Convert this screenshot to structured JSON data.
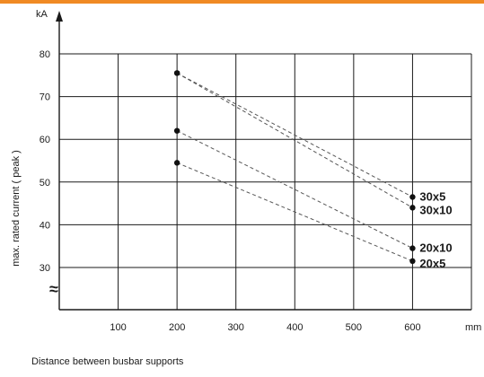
{
  "colors": {
    "accent_bar": "#f08a24",
    "grid": "#1a1a1a",
    "series_line": "#555555",
    "point": "#111111"
  },
  "chart_data": {
    "type": "line",
    "title": "",
    "xlabel": "Distance between busbar supports",
    "ylabel": "max. rated current ( peak )",
    "x_unit": "mm",
    "y_unit": "kA",
    "xlim": [
      0,
      700
    ],
    "ylim": [
      30,
      80
    ],
    "x_ticks": [
      100,
      200,
      300,
      400,
      500,
      600
    ],
    "x_tick_labels": [
      "100",
      "200",
      "300",
      "400",
      "500",
      "600"
    ],
    "y_ticks": [
      30,
      40,
      50,
      60,
      70,
      80
    ],
    "y_tick_labels": [
      "30",
      "40",
      "50",
      "60",
      "70",
      "80"
    ],
    "axis_break_symbol": "≈",
    "grid": true,
    "legend": "none",
    "series": [
      {
        "name": "30x5",
        "x": [
          200,
          600
        ],
        "y": [
          75.5,
          46.5
        ]
      },
      {
        "name": "30x10",
        "x": [
          200,
          600
        ],
        "y": [
          75.5,
          44
        ]
      },
      {
        "name": "20x10",
        "x": [
          200,
          600
        ],
        "y": [
          62,
          34.5
        ]
      },
      {
        "name": "20x5",
        "x": [
          200,
          600
        ],
        "y": [
          54.5,
          31.5
        ]
      }
    ]
  }
}
